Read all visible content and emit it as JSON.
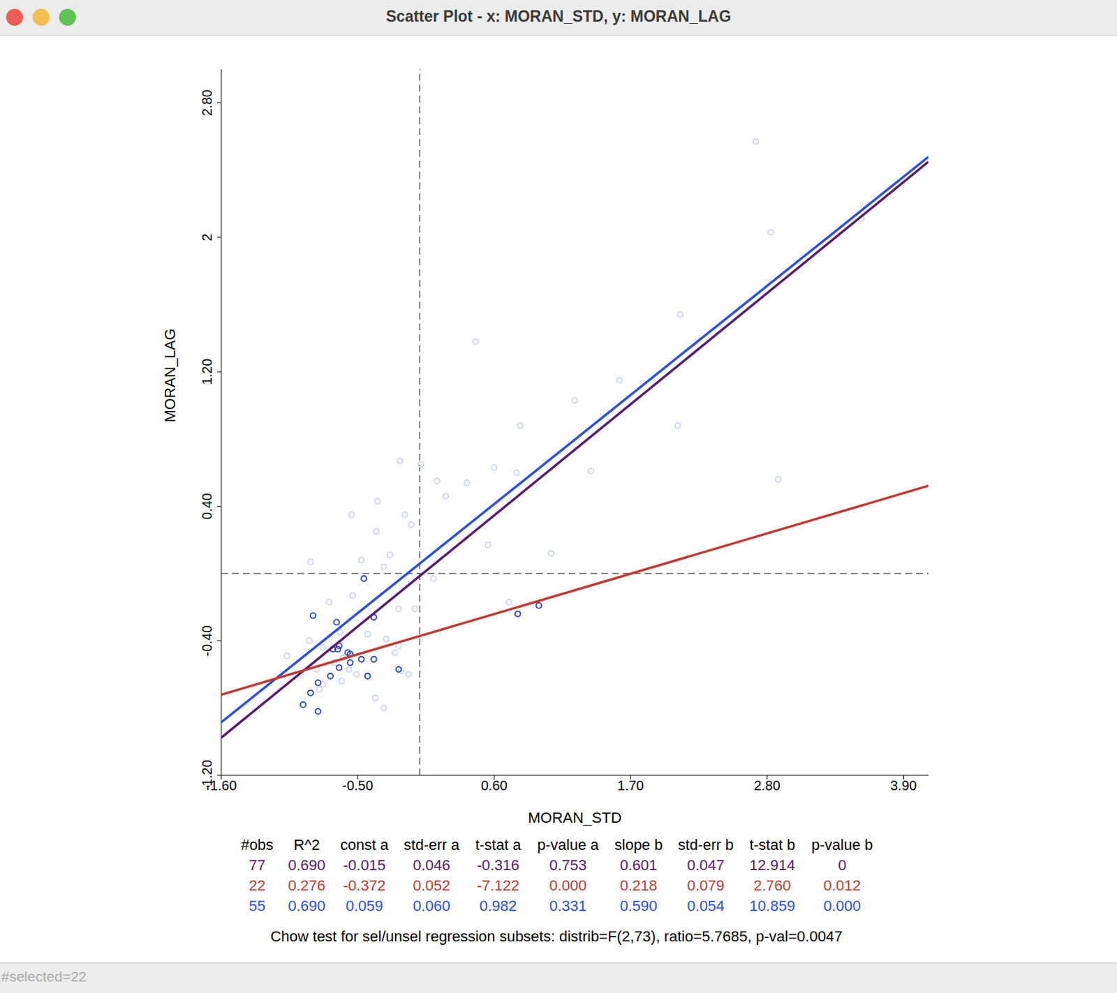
{
  "chart_data": {
    "type": "scatter",
    "title": "Scatter Plot - x: MORAN_STD, y: MORAN_LAG",
    "x_label": "MORAN_STD",
    "y_label": "MORAN_LAG",
    "xlim": [
      -1.6,
      4.1
    ],
    "xticks": [
      {
        "value": -1.6,
        "label": "-1.60"
      },
      {
        "value": -0.5,
        "label": "-0.50"
      },
      {
        "value": 0.6,
        "label": "0.60"
      },
      {
        "value": 1.7,
        "label": "1.70"
      },
      {
        "value": 2.8,
        "label": "2.80"
      },
      {
        "value": 3.9,
        "label": "3.90"
      }
    ],
    "ylim": [
      -1.2,
      3.0
    ],
    "yticks": [
      {
        "value": -1.2,
        "label": "-1.20"
      },
      {
        "value": -0.4,
        "label": "-0.40"
      },
      {
        "value": 0.4,
        "label": "0.40"
      },
      {
        "value": 1.2,
        "label": "1.20"
      },
      2,
      {
        "value": 2.8,
        "label": "2.80"
      }
    ],
    "reference_lines": {
      "x": 0,
      "y": 0
    },
    "series": [
      {
        "color": "#c9d5f2",
        "marker": "hollow circle",
        "x": [
          2.71,
          2.83,
          3.56,
          2.1,
          0.45,
          1.61,
          1.25,
          2.08,
          0.81,
          -0.16,
          0.01,
          0.6,
          0.14,
          0.38,
          0.78,
          1.38,
          2.89,
          0.21,
          -0.34,
          -0.55,
          -0.12,
          -0.07,
          -0.35,
          0.55,
          -0.24,
          1.06,
          -0.47,
          -0.88,
          -0.29,
          0.11,
          -0.54,
          -0.73,
          -0.17,
          -0.04,
          0.72,
          -0.64,
          -0.27,
          -0.89,
          -0.17,
          -1.07,
          -0.83,
          -0.57,
          -0.51,
          -0.09,
          -0.15,
          -0.63,
          -0.78,
          -0.81,
          -0.36,
          -0.29,
          -0.69,
          -0.62,
          -0.78,
          -0.42,
          -0.2
        ],
        "y": [
          2.57,
          2.03,
          2.11,
          1.54,
          1.38,
          1.15,
          1.03,
          0.88,
          0.88,
          0.67,
          0.65,
          0.63,
          0.55,
          0.54,
          0.6,
          0.61,
          0.56,
          0.46,
          0.43,
          0.35,
          0.35,
          0.29,
          0.25,
          0.17,
          0.11,
          0.12,
          0.08,
          0.07,
          0.04,
          -0.03,
          -0.13,
          -0.17,
          -0.21,
          -0.21,
          -0.17,
          -0.35,
          -0.39,
          -0.4,
          -0.43,
          -0.49,
          -0.57,
          -0.57,
          -0.6,
          -0.6,
          -0.58,
          -0.64,
          -0.66,
          -0.69,
          -0.74,
          -0.8,
          -0.53,
          -0.5,
          -0.44,
          -0.36,
          -0.47
        ]
      },
      {
        "color": "#1f3fd6",
        "marker": "hollow circle",
        "x": [
          -0.45,
          -0.86,
          -0.67,
          -0.37,
          -0.65,
          -0.7,
          -0.66,
          -0.56,
          -0.56,
          -0.47,
          -0.37,
          -0.65,
          -0.42,
          -0.72,
          -0.17,
          -0.82,
          -0.88,
          -0.94,
          -0.82,
          0.79,
          0.96,
          -0.58
        ],
        "y": [
          -0.03,
          -0.25,
          -0.29,
          -0.26,
          -0.43,
          -0.45,
          -0.45,
          -0.48,
          -0.53,
          -0.51,
          -0.51,
          -0.56,
          -0.61,
          -0.61,
          -0.57,
          -0.65,
          -0.71,
          -0.78,
          -0.82,
          -0.24,
          -0.19,
          -0.47
        ]
      }
    ]
  },
  "table": {
    "columns": [
      "#obs",
      "R^2",
      "const a",
      "std-err a",
      "t-stat a",
      "p-value a",
      "slope b",
      "std-err b",
      "t-stat b",
      "p-value b"
    ],
    "rows": [
      {
        "color": "#5b1a6e",
        "cells": [
          "77",
          "0.690",
          "-0.015",
          "0.046",
          "-0.316",
          "0.753",
          "0.601",
          "0.047",
          "12.914",
          "0"
        ]
      },
      {
        "color": "#be3a32",
        "cells": [
          "22",
          "0.276",
          "-0.372",
          "0.052",
          "-7.122",
          "0.000",
          "0.218",
          "0.079",
          "2.760",
          "0.012"
        ]
      },
      {
        "color": "#2a4fe0",
        "cells": [
          "55",
          "0.690",
          "0.059",
          "0.060",
          "0.982",
          "0.331",
          "0.590",
          "0.054",
          "10.859",
          "0.000"
        ]
      }
    ]
  },
  "footnote": "Chow test for sel/unsel regression subsets: distrib=F(2,73), ratio=5.7685, p-val=0.0047",
  "status": "#selected=22"
}
